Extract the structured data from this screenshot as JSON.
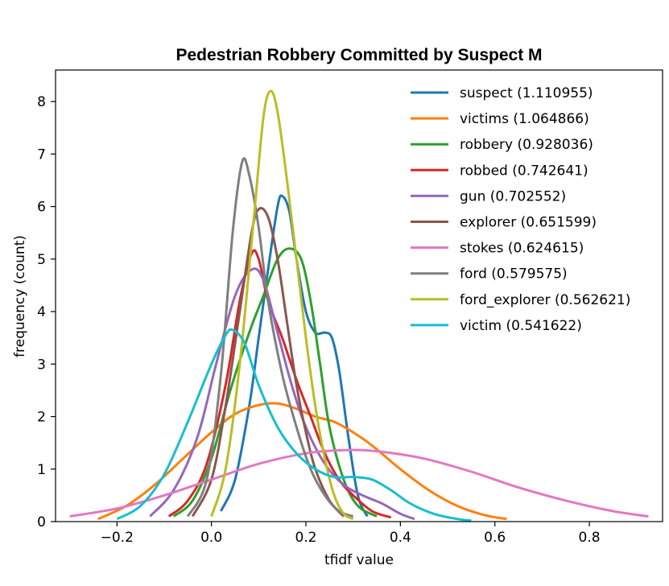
{
  "chart_data": {
    "type": "line",
    "title": "Pedestrian Robbery Committed by Suspect M",
    "xlabel": "tfidf value",
    "ylabel": "frequency (count)",
    "xlim": [
      -0.33,
      0.955
    ],
    "ylim": [
      0,
      8.6
    ],
    "xticks": [
      -0.2,
      0.0,
      0.2,
      0.4,
      0.6,
      0.8
    ],
    "xtick_labels": [
      "−0.2",
      "0.0",
      "0.2",
      "0.4",
      "0.6",
      "0.8"
    ],
    "yticks": [
      0,
      1,
      2,
      3,
      4,
      5,
      6,
      7,
      8
    ],
    "ytick_labels": [
      "0",
      "1",
      "2",
      "3",
      "4",
      "5",
      "6",
      "7",
      "8"
    ],
    "legend_position": "top-right",
    "series": [
      {
        "name": "suspect (1.110955)",
        "color": "#1f77b4",
        "points": [
          [
            0.02,
            0.2
          ],
          [
            0.05,
            0.8
          ],
          [
            0.08,
            2.2
          ],
          [
            0.1,
            3.5
          ],
          [
            0.12,
            4.8
          ],
          [
            0.14,
            6.0
          ],
          [
            0.15,
            6.2
          ],
          [
            0.165,
            5.9
          ],
          [
            0.18,
            5.0
          ],
          [
            0.2,
            4.0
          ],
          [
            0.22,
            3.6
          ],
          [
            0.24,
            3.6
          ],
          [
            0.255,
            3.5
          ],
          [
            0.27,
            2.9
          ],
          [
            0.29,
            1.6
          ],
          [
            0.31,
            0.5
          ],
          [
            0.33,
            0.1
          ]
        ]
      },
      {
        "name": "victims (1.064866)",
        "color": "#ff7f0e",
        "points": [
          [
            -0.24,
            0.05
          ],
          [
            -0.18,
            0.3
          ],
          [
            -0.12,
            0.7
          ],
          [
            -0.06,
            1.2
          ],
          [
            0.0,
            1.7
          ],
          [
            0.05,
            2.05
          ],
          [
            0.1,
            2.22
          ],
          [
            0.14,
            2.25
          ],
          [
            0.18,
            2.15
          ],
          [
            0.22,
            2.0
          ],
          [
            0.26,
            1.9
          ],
          [
            0.3,
            1.7
          ],
          [
            0.34,
            1.45
          ],
          [
            0.4,
            1.0
          ],
          [
            0.46,
            0.6
          ],
          [
            0.52,
            0.3
          ],
          [
            0.58,
            0.12
          ],
          [
            0.625,
            0.05
          ]
        ]
      },
      {
        "name": "robbery (0.928036)",
        "color": "#2ca02c",
        "points": [
          [
            -0.08,
            0.1
          ],
          [
            -0.04,
            0.4
          ],
          [
            0.0,
            1.2
          ],
          [
            0.04,
            2.5
          ],
          [
            0.08,
            3.6
          ],
          [
            0.11,
            4.3
          ],
          [
            0.14,
            5.0
          ],
          [
            0.165,
            5.2
          ],
          [
            0.19,
            5.0
          ],
          [
            0.21,
            4.2
          ],
          [
            0.23,
            3.0
          ],
          [
            0.25,
            1.8
          ],
          [
            0.28,
            0.8
          ],
          [
            0.31,
            0.3
          ],
          [
            0.35,
            0.1
          ]
        ]
      },
      {
        "name": "robbed (0.742641)",
        "color": "#d62728",
        "points": [
          [
            -0.09,
            0.1
          ],
          [
            -0.05,
            0.4
          ],
          [
            -0.01,
            1.1
          ],
          [
            0.03,
            2.6
          ],
          [
            0.06,
            4.2
          ],
          [
            0.085,
            5.1
          ],
          [
            0.1,
            5.0
          ],
          [
            0.12,
            4.2
          ],
          [
            0.15,
            3.5
          ],
          [
            0.18,
            2.7
          ],
          [
            0.21,
            2.0
          ],
          [
            0.24,
            1.3
          ],
          [
            0.27,
            0.8
          ],
          [
            0.3,
            0.5
          ],
          [
            0.34,
            0.2
          ],
          [
            0.38,
            0.08
          ]
        ]
      },
      {
        "name": "gun (0.702552)",
        "color": "#9467bd",
        "points": [
          [
            -0.13,
            0.1
          ],
          [
            -0.08,
            0.6
          ],
          [
            -0.03,
            1.6
          ],
          [
            0.01,
            3.0
          ],
          [
            0.05,
            4.3
          ],
          [
            0.085,
            4.8
          ],
          [
            0.11,
            4.6
          ],
          [
            0.14,
            3.6
          ],
          [
            0.17,
            2.6
          ],
          [
            0.2,
            1.8
          ],
          [
            0.24,
            1.1
          ],
          [
            0.28,
            0.7
          ],
          [
            0.32,
            0.5
          ],
          [
            0.36,
            0.35
          ],
          [
            0.4,
            0.15
          ],
          [
            0.43,
            0.05
          ]
        ]
      },
      {
        "name": "explorer (0.651599)",
        "color": "#8c564b",
        "points": [
          [
            -0.04,
            0.1
          ],
          [
            0.0,
            0.8
          ],
          [
            0.03,
            2.2
          ],
          [
            0.06,
            4.0
          ],
          [
            0.085,
            5.5
          ],
          [
            0.1,
            5.95
          ],
          [
            0.12,
            5.8
          ],
          [
            0.14,
            5.0
          ],
          [
            0.16,
            3.8
          ],
          [
            0.18,
            2.6
          ],
          [
            0.2,
            1.7
          ],
          [
            0.22,
            1.0
          ],
          [
            0.25,
            0.4
          ],
          [
            0.28,
            0.1
          ]
        ]
      },
      {
        "name": "stokes (0.624615)",
        "color": "#e377c2",
        "points": [
          [
            -0.3,
            0.1
          ],
          [
            -0.2,
            0.25
          ],
          [
            -0.1,
            0.5
          ],
          [
            0.0,
            0.8
          ],
          [
            0.1,
            1.1
          ],
          [
            0.2,
            1.3
          ],
          [
            0.28,
            1.36
          ],
          [
            0.35,
            1.34
          ],
          [
            0.45,
            1.2
          ],
          [
            0.55,
            0.95
          ],
          [
            0.65,
            0.65
          ],
          [
            0.75,
            0.4
          ],
          [
            0.85,
            0.2
          ],
          [
            0.925,
            0.1
          ]
        ]
      },
      {
        "name": "ford (0.579575)",
        "color": "#7f7f7f",
        "points": [
          [
            -0.05,
            0.1
          ],
          [
            -0.01,
            0.8
          ],
          [
            0.02,
            2.8
          ],
          [
            0.045,
            5.5
          ],
          [
            0.065,
            6.85
          ],
          [
            0.08,
            6.6
          ],
          [
            0.1,
            5.6
          ],
          [
            0.12,
            4.2
          ],
          [
            0.15,
            2.8
          ],
          [
            0.18,
            1.8
          ],
          [
            0.21,
            1.0
          ],
          [
            0.24,
            0.5
          ],
          [
            0.27,
            0.2
          ],
          [
            0.3,
            0.1
          ]
        ]
      },
      {
        "name": "ford_explorer (0.562621)",
        "color": "#bcbd22",
        "points": [
          [
            0.0,
            0.1
          ],
          [
            0.03,
            1.0
          ],
          [
            0.06,
            3.0
          ],
          [
            0.09,
            5.8
          ],
          [
            0.11,
            7.7
          ],
          [
            0.125,
            8.2
          ],
          [
            0.14,
            7.8
          ],
          [
            0.16,
            6.5
          ],
          [
            0.18,
            5.0
          ],
          [
            0.2,
            3.5
          ],
          [
            0.22,
            2.2
          ],
          [
            0.24,
            1.2
          ],
          [
            0.26,
            0.5
          ],
          [
            0.28,
            0.15
          ],
          [
            0.3,
            0.05
          ]
        ]
      },
      {
        "name": "victim (0.541622)",
        "color": "#17becf",
        "points": [
          [
            -0.2,
            0.05
          ],
          [
            -0.15,
            0.3
          ],
          [
            -0.1,
            0.9
          ],
          [
            -0.05,
            1.9
          ],
          [
            0.0,
            3.0
          ],
          [
            0.03,
            3.55
          ],
          [
            0.045,
            3.65
          ],
          [
            0.07,
            3.4
          ],
          [
            0.1,
            2.6
          ],
          [
            0.14,
            1.8
          ],
          [
            0.18,
            1.3
          ],
          [
            0.22,
            1.0
          ],
          [
            0.26,
            0.85
          ],
          [
            0.3,
            0.85
          ],
          [
            0.34,
            0.8
          ],
          [
            0.38,
            0.6
          ],
          [
            0.42,
            0.35
          ],
          [
            0.47,
            0.15
          ],
          [
            0.52,
            0.05
          ],
          [
            0.55,
            0.02
          ]
        ]
      }
    ]
  }
}
